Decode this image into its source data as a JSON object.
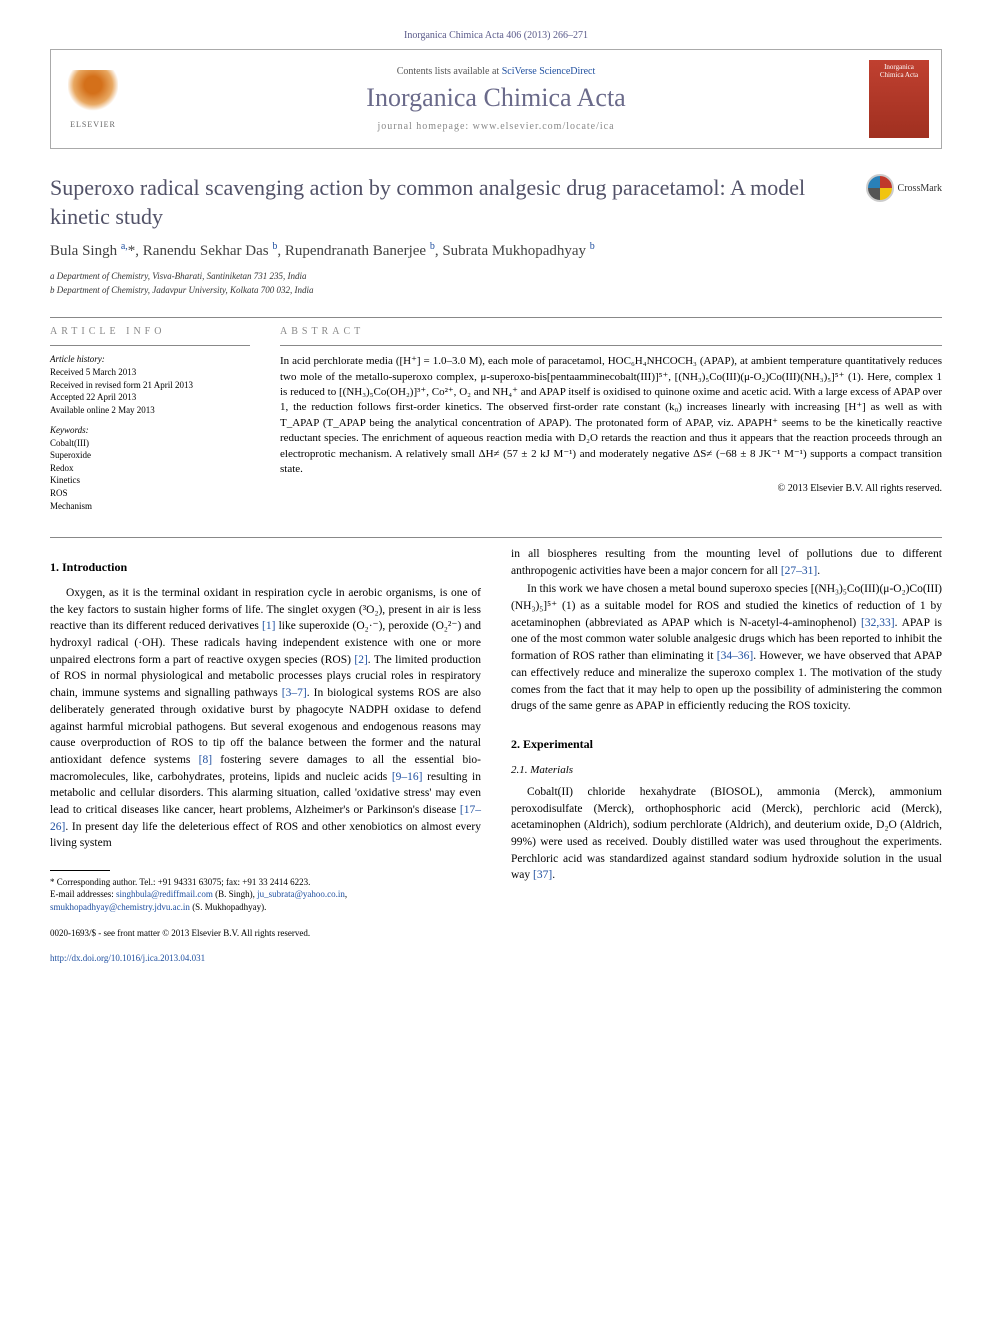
{
  "journal_ref": "Inorganica Chimica Acta 406 (2013) 266–271",
  "header": {
    "contents_prefix": "Contents lists available at ",
    "contents_link": "SciVerse ScienceDirect",
    "journal_name": "Inorganica Chimica Acta",
    "homepage_prefix": "journal homepage: ",
    "homepage_url": "www.elsevier.com/locate/ica",
    "publisher": "ELSEVIER",
    "cover_text": "Inorganica Chimica Acta"
  },
  "article": {
    "title": "Superoxo radical scavenging action by common analgesic drug paracetamol: A model kinetic study",
    "crossmark_label": "CrossMark",
    "authors_html": "Bula Singh <sup>a,</sup>*, Ranendu Sekhar Das <sup>b</sup>, Rupendranath Banerjee <sup>b</sup>, Subrata Mukhopadhyay <sup>b</sup>",
    "affiliations": [
      "a Department of Chemistry, Visva-Bharati, Santiniketan 731 235, India",
      "b Department of Chemistry, Jadavpur University, Kolkata 700 032, India"
    ]
  },
  "info": {
    "info_heading": "article info",
    "history_label": "Article history:",
    "history": [
      "Received 5 March 2013",
      "Received in revised form 21 April 2013",
      "Accepted 22 April 2013",
      "Available online 2 May 2013"
    ],
    "keywords_label": "Keywords:",
    "keywords": [
      "Cobalt(III)",
      "Superoxide",
      "Redox",
      "Kinetics",
      "ROS",
      "Mechanism"
    ]
  },
  "abstract": {
    "heading": "abstract",
    "text": "In acid perchlorate media ([H⁺] = 1.0–3.0 M), each mole of paracetamol, HOC₆H₄NHCOCH₃ (APAP), at ambient temperature quantitatively reduces two mole of the metallo-superoxo complex, μ-superoxo-bis[pentaamminecobalt(III)]⁵⁺, [(NH₃)₅Co(III)(μ-O₂)Co(III)(NH₃)₅]⁵⁺ (1). Here, complex 1 is reduced to [(NH₃)₅Co(OH₂)]³⁺, Co²⁺, O₂ and NH₄⁺ and APAP itself is oxidised to quinone oxime and acetic acid. With a large excess of APAP over 1, the reduction follows first-order kinetics. The observed first-order rate constant (k₀) increases linearly with increasing [H⁺] as well as with T_APAP (T_APAP being the analytical concentration of APAP). The protonated form of APAP, viz. APAPH⁺ seems to be the kinetically reactive reductant species. The enrichment of aqueous reaction media with D₂O retards the reaction and thus it appears that the reaction proceeds through an electroprotic mechanism. A relatively small ΔH≠ (57 ± 2 kJ M⁻¹) and moderately negative ΔS≠ (−68 ± 8 JK⁻¹ M⁻¹) supports a compact transition state.",
    "copyright": "© 2013 Elsevier B.V. All rights reserved."
  },
  "sections": {
    "intro_heading": "1. Introduction",
    "intro_p1": "Oxygen, as it is the terminal oxidant in respiration cycle in aerobic organisms, is one of the key factors to sustain higher forms of life. The singlet oxygen (³O₂), present in air is less reactive than its different reduced derivatives [1] like superoxide (O₂·⁻), peroxide (O₂²⁻) and hydroxyl radical (·OH). These radicals having independent existence with one or more unpaired electrons form a part of reactive oxygen species (ROS) [2]. The limited production of ROS in normal physiological and metabolic processes plays crucial roles in respiratory chain, immune systems and signalling pathways [3–7]. In biological systems ROS are also deliberately generated through oxidative burst by phagocyte NADPH oxidase to defend against harmful microbial pathogens. But several exogenous and endogenous reasons may cause overproduction of ROS to tip off the balance between the former and the natural antioxidant defence systems [8] fostering severe damages to all the essential bio-macromolecules, like, carbohydrates, proteins, lipids and nucleic acids [9–16] resulting in metabolic and cellular disorders. This alarming situation, called 'oxidative stress' may even lead to critical diseases like cancer, heart problems, Alzheimer's or Parkinson's disease [17–26]. In present day life the deleterious effect of ROS and other xenobiotics on almost every living system",
    "intro_p2": "in all biospheres resulting from the mounting level of pollutions due to different anthropogenic activities have been a major concern for all [27–31].",
    "intro_p3": "In this work we have chosen a metal bound superoxo species [(NH₃)₅Co(III)(μ-O₂)Co(III)(NH₃)₅]⁵⁺ (1) as a suitable model for ROS and studied the kinetics of reduction of 1 by acetaminophen (abbreviated as APAP which is N-acetyl-4-aminophenol) [32,33]. APAP is one of the most common water soluble analgesic drugs which has been reported to inhibit the formation of ROS rather than eliminating it [34–36]. However, we have observed that APAP can effectively reduce and mineralize the superoxo complex 1. The motivation of the study comes from the fact that it may help to open up the possibility of administering the common drugs of the same genre as APAP in efficiently reducing the ROS toxicity.",
    "exp_heading": "2. Experimental",
    "materials_heading": "2.1. Materials",
    "materials_p1": "Cobalt(II) chloride hexahydrate (BIOSOL), ammonia (Merck), ammonium peroxodisulfate (Merck), orthophosphoric acid (Merck), perchloric acid (Merck), acetaminophen (Aldrich), sodium perchlorate (Aldrich), and deuterium oxide, D₂O (Aldrich, 99%) were used as received. Doubly distilled water was used throughout the experiments. Perchloric acid was standardized against standard sodium hydroxide solution in the usual way [37]."
  },
  "footnote": {
    "corr": "* Corresponding author. Tel.: +91 94331 63075; fax: +91 33 2414 6223.",
    "email_label": "E-mail addresses: ",
    "emails": [
      {
        "addr": "singhbula@rediffmail.com",
        "who": " (B. Singh), "
      },
      {
        "addr": "ju_subrata@yahoo.co.in",
        "who": ", "
      },
      {
        "addr": "smukhopadhyay@chemistry.jdvu.ac.in",
        "who": " (S. Mukhopadhyay)."
      }
    ]
  },
  "bottom": {
    "issn": "0020-1693/$ - see front matter © 2013 Elsevier B.V. All rights reserved.",
    "doi_label": "http://dx.doi.org/",
    "doi": "10.1016/j.ica.2013.04.031"
  },
  "colors": {
    "link": "#2050a0",
    "heading_gray": "#525268",
    "journal_gray": "#6a6a8a",
    "cover_red": "#b03828"
  }
}
